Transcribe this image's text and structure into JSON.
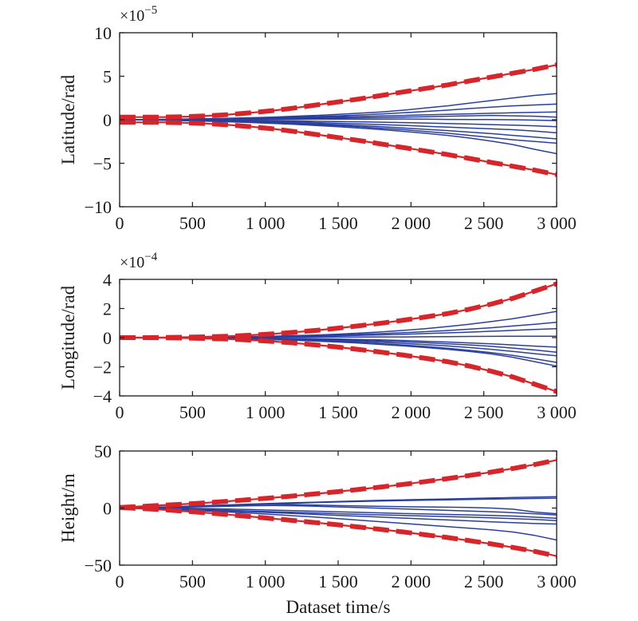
{
  "colors": {
    "sample": "#2b3f9c",
    "bound": "#d6262b",
    "axis": "#1a1a1a"
  },
  "xlabel": "Dataset time/s",
  "chart_data": [
    {
      "type": "line",
      "ylabel": "Latitude/rad",
      "exponent_base": "×10",
      "exponent_power": "−5",
      "xlim": [
        0,
        3000
      ],
      "ylim": [
        -10,
        10
      ],
      "xticks": [
        0,
        500,
        1000,
        1500,
        2000,
        2500,
        3000
      ],
      "xtick_labels": [
        "0",
        "500",
        "1 000",
        "1 500",
        "2 000",
        "2 500",
        "3 000"
      ],
      "yticks": [
        10,
        5,
        0,
        -5,
        -10
      ],
      "ytick_labels": [
        "10",
        "5",
        "0",
        "−5",
        "−10"
      ],
      "x": [
        0,
        150,
        300,
        450,
        600,
        750,
        900,
        1050,
        1200,
        1350,
        1500,
        1650,
        1800,
        1950,
        2100,
        2250,
        2400,
        2550,
        2700,
        2850,
        3000
      ],
      "bounds": [
        {
          "values": [
            0.3,
            0.3,
            0.3,
            0.35,
            0.45,
            0.6,
            0.8,
            1.05,
            1.35,
            1.7,
            2.05,
            2.4,
            2.8,
            3.2,
            3.6,
            4.0,
            4.45,
            4.9,
            5.35,
            5.8,
            6.3
          ]
        },
        {
          "values": [
            -0.3,
            -0.3,
            -0.3,
            -0.35,
            -0.45,
            -0.6,
            -0.8,
            -1.05,
            -1.35,
            -1.7,
            -2.05,
            -2.4,
            -2.8,
            -3.2,
            -3.6,
            -4.0,
            -4.45,
            -4.9,
            -5.35,
            -5.8,
            -6.3
          ]
        }
      ],
      "series": [
        {
          "values": [
            0,
            0.02,
            0.05,
            0.08,
            0.12,
            0.17,
            0.23,
            0.3,
            0.4,
            0.5,
            0.62,
            0.75,
            0.9,
            1.1,
            1.35,
            1.6,
            1.9,
            2.2,
            2.5,
            2.8,
            3.0
          ]
        },
        {
          "values": [
            0,
            0.02,
            0.04,
            0.07,
            0.1,
            0.14,
            0.19,
            0.24,
            0.3,
            0.37,
            0.45,
            0.55,
            0.66,
            0.8,
            0.95,
            1.1,
            1.28,
            1.45,
            1.6,
            1.7,
            1.8
          ]
        },
        {
          "values": [
            0,
            0.01,
            0.03,
            0.05,
            0.08,
            0.11,
            0.15,
            0.19,
            0.23,
            0.28,
            0.33,
            0.38,
            0.44,
            0.5,
            0.56,
            0.62,
            0.68,
            0.74,
            0.8,
            0.85,
            0.9
          ]
        },
        {
          "values": [
            0,
            0.01,
            0.02,
            0.03,
            0.05,
            0.07,
            0.09,
            0.11,
            0.14,
            0.17,
            0.2,
            0.23,
            0.26,
            0.3,
            0.35,
            0.4,
            0.45,
            0.5,
            0.45,
            0.4,
            0.3
          ]
        },
        {
          "values": [
            0,
            0.0,
            0.01,
            0.01,
            0.02,
            0.02,
            0.03,
            0.04,
            0.05,
            0.06,
            0.06,
            0.07,
            0.07,
            0.08,
            0.06,
            0.04,
            0.03,
            0.02,
            0.0,
            -0.05,
            -0.1
          ]
        },
        {
          "values": [
            0,
            -0.01,
            -0.02,
            -0.03,
            -0.05,
            -0.07,
            -0.09,
            -0.11,
            -0.14,
            -0.17,
            -0.2,
            -0.24,
            -0.28,
            -0.33,
            -0.38,
            -0.44,
            -0.5,
            -0.56,
            -0.62,
            -0.7,
            -0.8
          ]
        },
        {
          "values": [
            0,
            -0.01,
            -0.03,
            -0.05,
            -0.08,
            -0.11,
            -0.15,
            -0.2,
            -0.26,
            -0.33,
            -0.4,
            -0.48,
            -0.56,
            -0.65,
            -0.75,
            -0.85,
            -0.95,
            -1.05,
            -1.15,
            -1.3,
            -1.5
          ]
        },
        {
          "values": [
            0,
            -0.02,
            -0.04,
            -0.07,
            -0.11,
            -0.16,
            -0.22,
            -0.29,
            -0.37,
            -0.46,
            -0.56,
            -0.68,
            -0.8,
            -0.95,
            -1.1,
            -1.25,
            -1.42,
            -1.6,
            -1.8,
            -2.0,
            -2.2
          ]
        },
        {
          "values": [
            0,
            -0.02,
            -0.05,
            -0.09,
            -0.14,
            -0.2,
            -0.27,
            -0.35,
            -0.45,
            -0.56,
            -0.68,
            -0.82,
            -0.98,
            -1.15,
            -1.35,
            -1.55,
            -1.8,
            -2.05,
            -2.3,
            -2.5,
            -2.7
          ]
        },
        {
          "values": [
            0,
            -0.02,
            -0.06,
            -0.11,
            -0.17,
            -0.24,
            -0.32,
            -0.42,
            -0.53,
            -0.66,
            -0.8,
            -0.96,
            -1.14,
            -1.34,
            -1.56,
            -1.8,
            -2.1,
            -2.45,
            -2.85,
            -3.4,
            -3.9
          ]
        }
      ]
    },
    {
      "type": "line",
      "ylabel": "Longitude/rad",
      "exponent_base": "×10",
      "exponent_power": "−4",
      "xlim": [
        0,
        3000
      ],
      "ylim": [
        -4,
        4
      ],
      "xticks": [
        0,
        500,
        1000,
        1500,
        2000,
        2500,
        3000
      ],
      "xtick_labels": [
        "0",
        "500",
        "1 000",
        "1 500",
        "2 000",
        "2 500",
        "3 000"
      ],
      "yticks": [
        4,
        2,
        0,
        -2,
        -4
      ],
      "ytick_labels": [
        "4",
        "2",
        "0",
        "−2",
        "−4"
      ],
      "x": [
        0,
        150,
        300,
        450,
        600,
        750,
        900,
        1050,
        1200,
        1350,
        1500,
        1650,
        1800,
        1950,
        2100,
        2250,
        2400,
        2550,
        2700,
        2850,
        3000
      ],
      "bounds": [
        {
          "values": [
            0.0,
            0.0,
            0.01,
            0.03,
            0.06,
            0.1,
            0.17,
            0.26,
            0.37,
            0.5,
            0.65,
            0.82,
            1.0,
            1.2,
            1.42,
            1.65,
            1.95,
            2.3,
            2.7,
            3.2,
            3.7
          ]
        },
        {
          "values": [
            0.0,
            0.0,
            -0.01,
            -0.03,
            -0.06,
            -0.1,
            -0.17,
            -0.26,
            -0.37,
            -0.5,
            -0.65,
            -0.82,
            -1.0,
            -1.2,
            -1.42,
            -1.65,
            -1.95,
            -2.3,
            -2.7,
            -3.2,
            -3.7
          ]
        }
      ],
      "series": [
        {
          "values": [
            0,
            0.0,
            0.01,
            0.02,
            0.03,
            0.05,
            0.07,
            0.1,
            0.14,
            0.18,
            0.24,
            0.31,
            0.4,
            0.5,
            0.62,
            0.76,
            0.92,
            1.1,
            1.3,
            1.55,
            1.8
          ]
        },
        {
          "values": [
            0,
            0.0,
            0.01,
            0.02,
            0.03,
            0.04,
            0.06,
            0.08,
            0.11,
            0.14,
            0.18,
            0.23,
            0.28,
            0.34,
            0.41,
            0.49,
            0.58,
            0.68,
            0.8,
            0.92,
            1.05
          ]
        },
        {
          "values": [
            0,
            0.0,
            0.0,
            0.01,
            0.02,
            0.03,
            0.04,
            0.06,
            0.08,
            0.1,
            0.13,
            0.16,
            0.19,
            0.23,
            0.28,
            0.33,
            0.38,
            0.44,
            0.5,
            0.56,
            0.62
          ]
        },
        {
          "values": [
            0,
            0.0,
            0.0,
            0.0,
            0.01,
            0.01,
            0.02,
            0.02,
            0.03,
            0.03,
            0.04,
            0.04,
            0.05,
            0.05,
            0.06,
            0.07,
            0.08,
            0.09,
            0.1,
            0.1,
            0.1
          ]
        },
        {
          "values": [
            0,
            0.0,
            0.0,
            -0.01,
            -0.01,
            -0.02,
            -0.03,
            -0.04,
            -0.06,
            -0.08,
            -0.1,
            -0.13,
            -0.16,
            -0.2,
            -0.25,
            -0.3,
            -0.36,
            -0.43,
            -0.5,
            -0.58,
            -0.65
          ]
        },
        {
          "values": [
            0,
            0.0,
            -0.01,
            -0.01,
            -0.02,
            -0.03,
            -0.05,
            -0.07,
            -0.09,
            -0.12,
            -0.15,
            -0.19,
            -0.24,
            -0.29,
            -0.35,
            -0.42,
            -0.5,
            -0.6,
            -0.72,
            -0.85,
            -1.0
          ]
        },
        {
          "values": [
            0,
            0.0,
            -0.01,
            -0.02,
            -0.03,
            -0.05,
            -0.07,
            -0.1,
            -0.13,
            -0.17,
            -0.22,
            -0.27,
            -0.33,
            -0.4,
            -0.48,
            -0.57,
            -0.68,
            -0.8,
            -0.95,
            -1.1,
            -1.25
          ]
        },
        {
          "values": [
            0,
            0.0,
            -0.01,
            -0.02,
            -0.04,
            -0.06,
            -0.09,
            -0.12,
            -0.16,
            -0.21,
            -0.27,
            -0.34,
            -0.42,
            -0.51,
            -0.61,
            -0.73,
            -0.87,
            -1.03,
            -1.22,
            -1.45,
            -1.7
          ]
        },
        {
          "values": [
            0,
            0.0,
            -0.01,
            -0.03,
            -0.05,
            -0.07,
            -0.1,
            -0.14,
            -0.18,
            -0.24,
            -0.3,
            -0.38,
            -0.47,
            -0.57,
            -0.68,
            -0.8,
            -0.95,
            -1.12,
            -1.35,
            -1.65,
            -1.95
          ]
        }
      ]
    },
    {
      "type": "line",
      "ylabel": "Height/m",
      "xlabel": "Dataset time/s",
      "xlim": [
        0,
        3000
      ],
      "ylim": [
        -50,
        50
      ],
      "xticks": [
        0,
        500,
        1000,
        1500,
        2000,
        2500,
        3000
      ],
      "xtick_labels": [
        "0",
        "500",
        "1 000",
        "1 500",
        "2 000",
        "2 500",
        "3 000"
      ],
      "yticks": [
        50,
        0,
        -50
      ],
      "ytick_labels": [
        "50",
        "0",
        "−50"
      ],
      "x": [
        0,
        150,
        300,
        450,
        600,
        750,
        900,
        1050,
        1200,
        1350,
        1500,
        1650,
        1800,
        1950,
        2100,
        2250,
        2400,
        2550,
        2700,
        2850,
        3000
      ],
      "bounds": [
        {
          "values": [
            0.5,
            1.5,
            2.5,
            3.5,
            4.7,
            6.0,
            7.5,
            9.0,
            10.7,
            12.5,
            14.4,
            16.4,
            18.5,
            20.8,
            23.2,
            25.8,
            28.5,
            31.5,
            34.7,
            38.2,
            42.0
          ]
        },
        {
          "values": [
            0.5,
            -0.5,
            -1.5,
            -2.8,
            -4.2,
            -5.8,
            -7.5,
            -9.2,
            -11.0,
            -12.8,
            -14.7,
            -16.7,
            -18.8,
            -21.0,
            -23.4,
            -25.8,
            -28.5,
            -31.4,
            -34.5,
            -38.0,
            -42.0
          ]
        }
      ],
      "series": [
        {
          "values": [
            0,
            0.5,
            1.0,
            1.6,
            2.2,
            2.8,
            3.5,
            4.1,
            4.7,
            5.2,
            5.8,
            6.3,
            6.8,
            7.2,
            7.6,
            8.0,
            8.4,
            8.8,
            9.2,
            9.6,
            10.0
          ]
        },
        {
          "values": [
            0,
            0.4,
            0.8,
            1.3,
            1.8,
            2.4,
            3.0,
            3.6,
            4.2,
            4.8,
            5.3,
            5.8,
            6.2,
            6.6,
            6.9,
            7.2,
            7.5,
            7.8,
            8.1,
            8.4,
            8.7
          ]
        },
        {
          "values": [
            0,
            0.3,
            0.7,
            1.2,
            1.8,
            2.5,
            3.0,
            3.2,
            3.0,
            2.6,
            2.2,
            1.8,
            1.5,
            1.2,
            1.0,
            0.8,
            0.5,
            0.0,
            -1.0,
            -3.5,
            -5.0
          ]
        },
        {
          "values": [
            0,
            0.2,
            0.4,
            0.8,
            1.2,
            1.6,
            2.0,
            2.2,
            2.0,
            1.6,
            1.0,
            0.4,
            -0.2,
            -0.8,
            -1.4,
            -2.0,
            -2.6,
            -3.2,
            -4.0,
            -5.0,
            -6.0
          ]
        },
        {
          "values": [
            0,
            0.0,
            0.0,
            -0.2,
            -0.5,
            -0.9,
            -1.3,
            -1.8,
            -2.3,
            -2.8,
            -3.3,
            -3.8,
            -4.3,
            -4.8,
            -5.2,
            -5.6,
            -6.0,
            -6.5,
            -7.0,
            -8.0,
            -9.0
          ]
        },
        {
          "values": [
            0,
            -0.2,
            -0.5,
            -0.9,
            -1.4,
            -2.0,
            -2.6,
            -3.2,
            -3.8,
            -4.4,
            -5.0,
            -5.5,
            -6.0,
            -6.5,
            -7.0,
            -7.5,
            -8.0,
            -8.6,
            -9.2,
            -10.0,
            -11.0
          ]
        },
        {
          "values": [
            0,
            -0.3,
            -0.7,
            -1.2,
            -1.8,
            -2.5,
            -3.2,
            -4.0,
            -4.8,
            -5.6,
            -6.4,
            -7.2,
            -8.0,
            -8.8,
            -9.6,
            -10.4,
            -11.2,
            -12.0,
            -12.8,
            -13.6,
            -14.0
          ]
        },
        {
          "values": [
            0,
            -0.5,
            -1.1,
            -1.8,
            -2.6,
            -3.5,
            -4.5,
            -5.6,
            -6.8,
            -8.0,
            -9.3,
            -10.6,
            -12.0,
            -13.4,
            -14.8,
            -16.2,
            -17.6,
            -19.0,
            -21.0,
            -24.0,
            -28.0
          ]
        }
      ]
    }
  ]
}
